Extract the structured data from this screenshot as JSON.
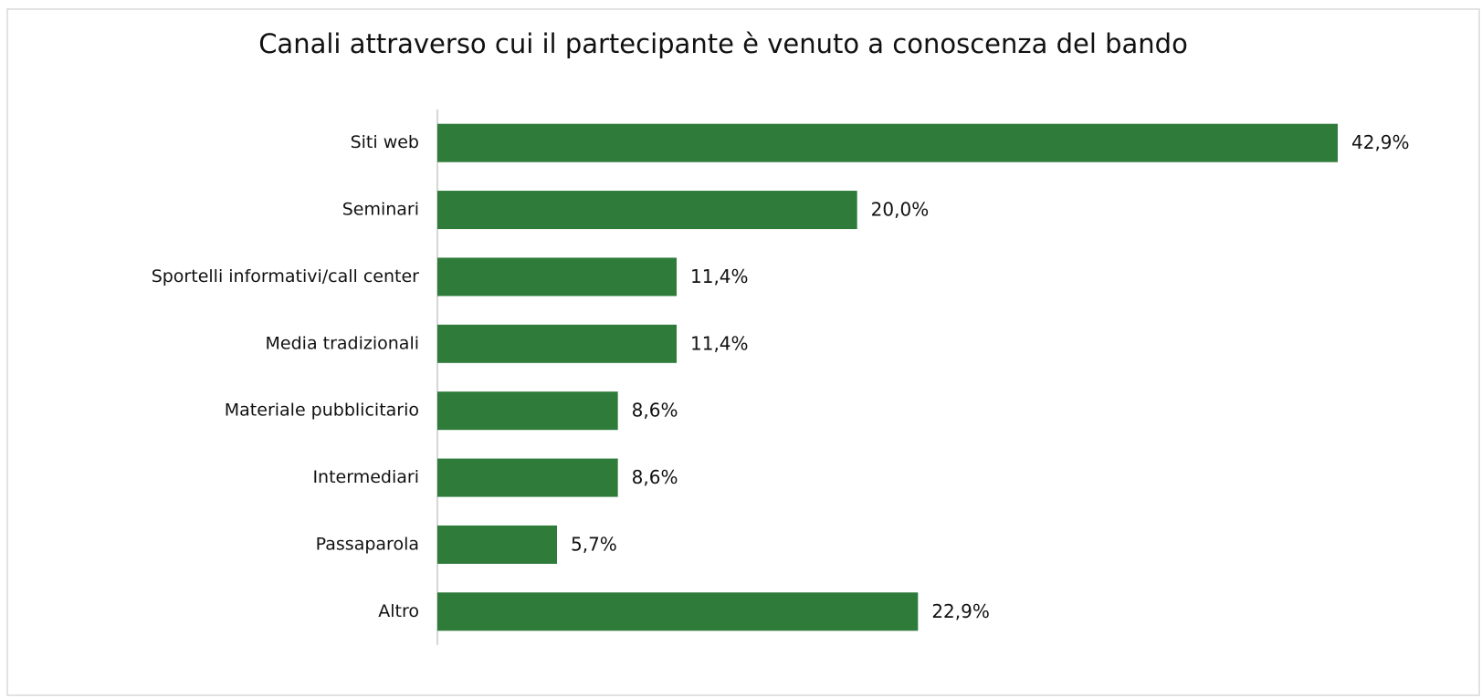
{
  "chart_data": {
    "type": "hbar",
    "title": "Canali attraverso cui il partecipante è venuto a conoscenza del bando",
    "categories": [
      "Siti web",
      "Seminari",
      "Sportelli informativi/call center",
      "Media tradizionali",
      "Materiale pubblicitario",
      "Intermediari",
      "Passaparola",
      "Altro"
    ],
    "values": [
      42.9,
      20.0,
      11.4,
      11.4,
      8.6,
      8.6,
      5.7,
      22.9
    ],
    "value_labels": [
      "42,9%",
      "20,0%",
      "11,4%",
      "11,4%",
      "8,6%",
      "8,6%",
      "5,7%",
      "22,9%"
    ],
    "color": "#2e7b3a"
  }
}
